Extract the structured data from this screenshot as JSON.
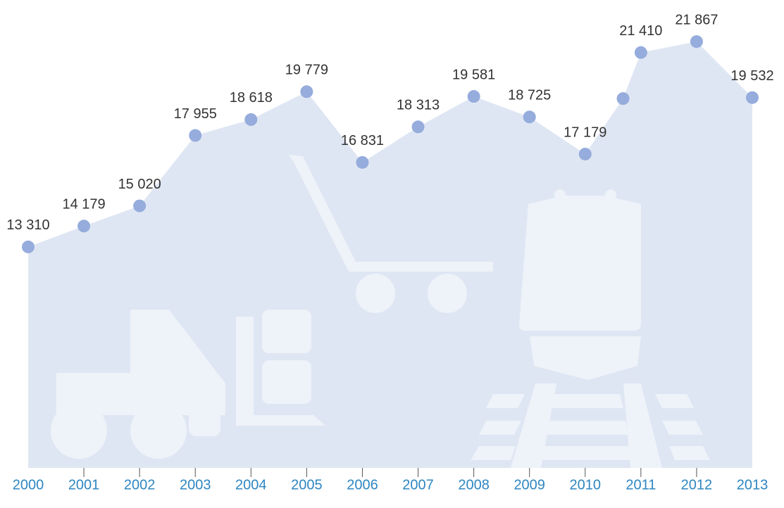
{
  "chart_data": {
    "type": "area",
    "x": [
      2000,
      2001,
      2002,
      2003,
      2004,
      2005,
      2006,
      2007,
      2008,
      2009,
      2010,
      2010.68,
      2011,
      2012,
      2013
    ],
    "values": [
      13310,
      14179,
      15020,
      17955,
      18618,
      19779,
      16831,
      18313,
      19581,
      18725,
      17179,
      19493,
      21410,
      21867,
      19532
    ],
    "value_labels": [
      "13 310",
      "14 179",
      "15 020",
      "17 955",
      "18 618",
      "19 779",
      "16 831",
      "18 313",
      "19 581",
      "18 725",
      "17 179",
      null,
      "21 410",
      "21 867",
      "19 532"
    ],
    "xticks": [
      2000,
      2001,
      2002,
      2003,
      2004,
      2005,
      2006,
      2007,
      2008,
      2009,
      2010,
      2011,
      2012,
      2013
    ],
    "xlim": [
      2000,
      2013
    ],
    "ylim": [
      4100,
      23600
    ],
    "color": "#95acdc",
    "area_color": "#dfe6f3"
  }
}
